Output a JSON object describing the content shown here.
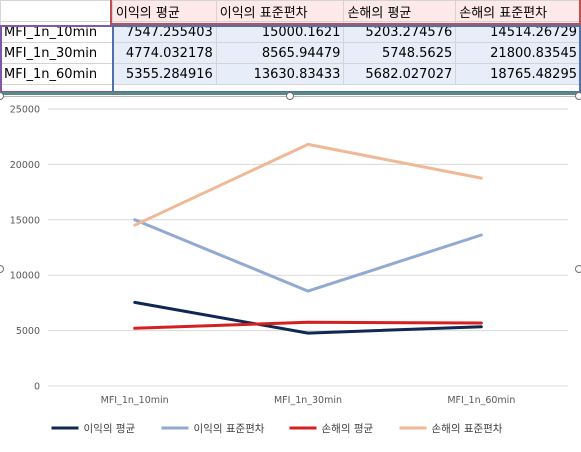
{
  "sheet": {
    "headers": [
      "이익의 평균",
      "이익의 표준편차",
      "손해의 평균",
      "손해의 표준편차"
    ],
    "rows": [
      {
        "label": "MFI_1n_10min",
        "values": [
          "7547.255403",
          "15000.1621",
          "5203.274576",
          "14514.26729"
        ]
      },
      {
        "label": "MFI_1n_30min",
        "values": [
          "4774.032178",
          "8565.94479",
          "5748.5625",
          "21800.83545"
        ]
      },
      {
        "label": "MFI_1n_60min",
        "values": [
          "5355.284916",
          "13630.83433",
          "5682.027027",
          "18765.48295"
        ]
      }
    ]
  },
  "chart_data": {
    "type": "line",
    "categories": [
      "MFI_1n_10min",
      "MFI_1n_30min",
      "MFI_1n_60min"
    ],
    "series": [
      {
        "name": "이익의 평균",
        "color": "#0f2753",
        "values": [
          7547.255403,
          4774.032178,
          5355.284916
        ]
      },
      {
        "name": "이익의 표준편차",
        "color": "#92aad1",
        "values": [
          15000.1621,
          8565.94479,
          13630.83433
        ]
      },
      {
        "name": "손해의 평균",
        "color": "#d42020",
        "values": [
          5203.274576,
          5748.5625,
          5682.027027
        ]
      },
      {
        "name": "손해의 표준편차",
        "color": "#efb998",
        "values": [
          14514.26729,
          21800.83545,
          18765.48295
        ]
      }
    ],
    "y_ticks": [
      "0",
      "5000",
      "10000",
      "15000",
      "20000",
      "25000"
    ],
    "ylim": [
      0,
      25000
    ],
    "grid": true,
    "legend": "bottom"
  }
}
